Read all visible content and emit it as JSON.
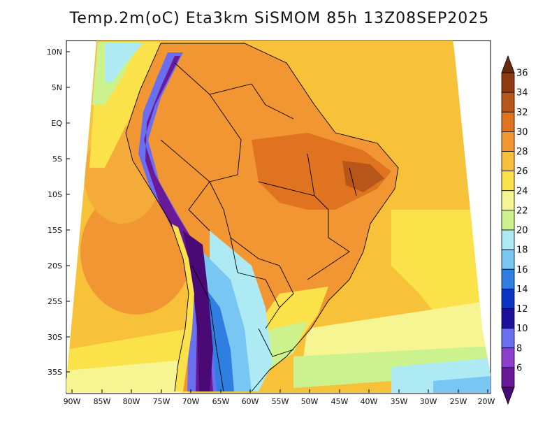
{
  "title": "Temp.2m(oC) Eta3km SiSMOM 85h 13Z08SEP2025",
  "lat_ticks": [
    "10N",
    "5N",
    "EQ",
    "5S",
    "10S",
    "15S",
    "20S",
    "25S",
    "30S",
    "35S"
  ],
  "lon_ticks": [
    "90W",
    "85W",
    "80W",
    "75W",
    "70W",
    "65W",
    "60W",
    "55W",
    "50W",
    "45W",
    "40W",
    "35W",
    "30W",
    "25W",
    "20W"
  ],
  "colorbar": {
    "labels": [
      "36",
      "34",
      "32",
      "30",
      "28",
      "26",
      "24",
      "22",
      "20",
      "18",
      "16",
      "14",
      "12",
      "10",
      "8",
      "6"
    ],
    "colors": [
      "#6b2a0e",
      "#8e3b12",
      "#b85518",
      "#e0731f",
      "#f29634",
      "#f7bf3a",
      "#fbe14a",
      "#f7f591",
      "#ccf28e",
      "#aeeaf4",
      "#78c7f2",
      "#2f7fe3",
      "#0a35c4",
      "#1a109a",
      "#6a6ff0",
      "#8d3fca",
      "#6a1a98",
      "#4a0a75"
    ]
  }
}
